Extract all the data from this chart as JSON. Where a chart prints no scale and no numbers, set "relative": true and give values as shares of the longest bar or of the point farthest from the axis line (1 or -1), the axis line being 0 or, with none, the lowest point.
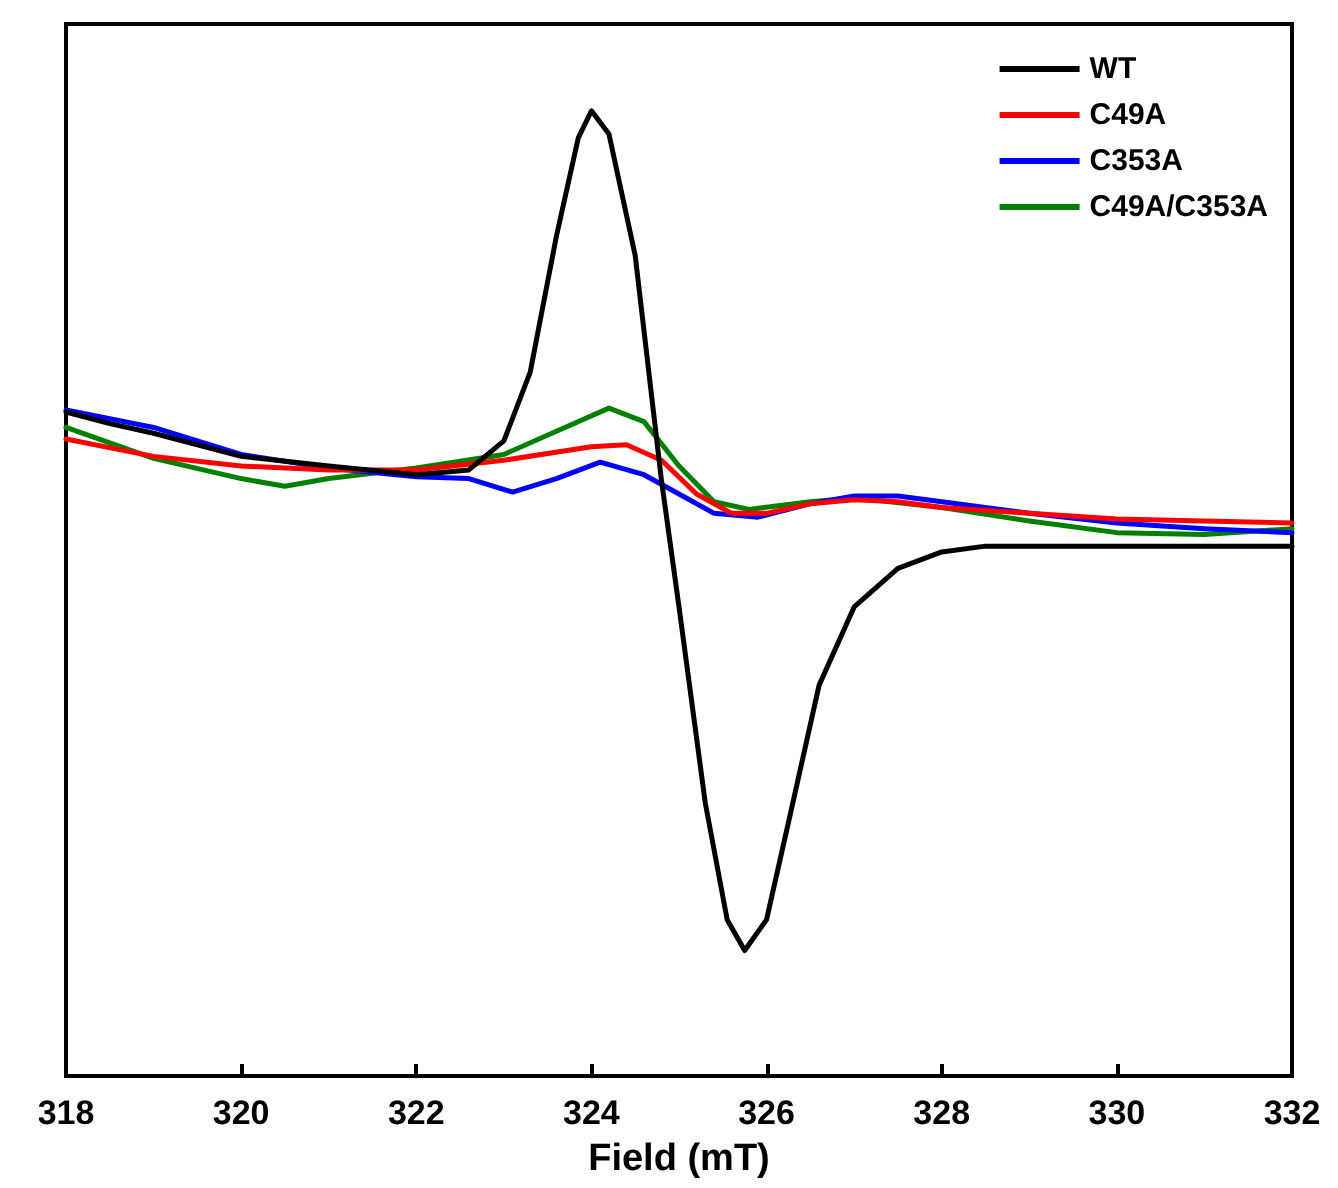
{
  "chart_data": {
    "type": "line",
    "xlabel": "Field (mT)",
    "relative": true,
    "xlim": [
      318,
      332
    ],
    "xticks": [
      318,
      320,
      322,
      324,
      326,
      328,
      330,
      332
    ],
    "tick_labels": "x",
    "grid": false,
    "legend": "top right",
    "marker": "none",
    "line_style": "solid",
    "series": [
      {
        "name": "WT",
        "color": "#000000",
        "x": [
          318,
          318.5,
          319,
          320,
          321,
          322,
          322.6,
          323,
          323.3,
          323.6,
          323.85,
          324,
          324.2,
          324.5,
          324.8,
          325,
          325.3,
          325.55,
          325.75,
          326,
          326.3,
          326.6,
          327,
          327.5,
          328,
          328.5,
          330,
          332
        ],
        "values": [
          0.688,
          0.676,
          0.666,
          0.642,
          0.632,
          0.623,
          0.628,
          0.658,
          0.729,
          0.87,
          0.972,
          1,
          0.976,
          0.85,
          0.617,
          0.486,
          0.283,
          0.162,
          0.13,
          0.162,
          0.283,
          0.405,
          0.486,
          0.526,
          0.543,
          0.549,
          0.549,
          0.549
        ]
      },
      {
        "name": "C49A",
        "color": "#ff0000",
        "x": [
          318,
          319,
          320,
          321,
          322,
          323,
          324,
          324.4,
          324.8,
          325.2,
          325.6,
          326,
          326.5,
          327,
          327.5,
          328,
          329,
          330,
          331,
          332
        ],
        "values": [
          0.66,
          0.642,
          0.632,
          0.628,
          0.628,
          0.638,
          0.652,
          0.654,
          0.638,
          0.603,
          0.583,
          0.583,
          0.593,
          0.597,
          0.595,
          0.589,
          0.583,
          0.577,
          0.575,
          0.573
        ]
      },
      {
        "name": "C353A",
        "color": "#0000ff",
        "x": [
          318,
          319,
          320,
          321,
          322,
          322.6,
          323.1,
          323.6,
          324.1,
          324.6,
          325,
          325.4,
          325.9,
          326.5,
          327,
          327.5,
          328,
          329,
          330,
          331,
          332
        ],
        "values": [
          0.69,
          0.672,
          0.644,
          0.63,
          0.621,
          0.619,
          0.605,
          0.619,
          0.636,
          0.623,
          0.603,
          0.583,
          0.579,
          0.593,
          0.601,
          0.601,
          0.595,
          0.583,
          0.573,
          0.567,
          0.563
        ]
      },
      {
        "name": "C49A/C353A",
        "color": "#008000",
        "x": [
          318,
          319,
          320,
          320.5,
          321,
          322,
          323,
          323.6,
          324.2,
          324.6,
          325,
          325.4,
          325.8,
          326.5,
          327,
          328,
          329,
          330,
          331,
          332
        ],
        "values": [
          0.672,
          0.64,
          0.619,
          0.611,
          0.619,
          0.63,
          0.644,
          0.668,
          0.692,
          0.678,
          0.632,
          0.595,
          0.587,
          0.595,
          0.599,
          0.589,
          0.575,
          0.563,
          0.561,
          0.567
        ]
      }
    ]
  }
}
